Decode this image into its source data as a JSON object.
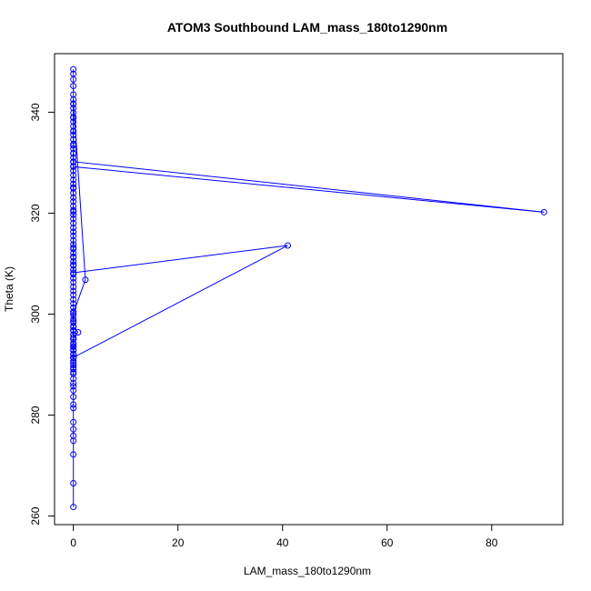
{
  "chart_data": {
    "type": "line",
    "title": "ATOM3 Southbound LAM_mass_180to1290nm",
    "xlabel": "LAM_mass_180to1290nm",
    "ylabel": "Theta (K)",
    "xlim": [
      -3.6,
      93.6
    ],
    "ylim": [
      258.3,
      351.6
    ],
    "xticks": [
      0,
      20,
      40,
      60,
      80
    ],
    "yticks": [
      260,
      280,
      300,
      320,
      340
    ],
    "series_color": "#0000ff",
    "markers": "open-circle",
    "grid": false,
    "series": [
      {
        "x": [
          0,
          0,
          0,
          0,
          0,
          0,
          0,
          0,
          0,
          0,
          0,
          0,
          0,
          0,
          0,
          0,
          0,
          0,
          0,
          0,
          0,
          0,
          0,
          0,
          0,
          0,
          0,
          0,
          0,
          0,
          0,
          0,
          0,
          0,
          0,
          0,
          0,
          0,
          0,
          0,
          0,
          0,
          0,
          0,
          0,
          0,
          0,
          0,
          0,
          0,
          0,
          0,
          0,
          0,
          0,
          0,
          0,
          0,
          0,
          0,
          0,
          0,
          0,
          0,
          0,
          0,
          0,
          0,
          0,
          0,
          0,
          0,
          0,
          0,
          0,
          0,
          0,
          0,
          0,
          0,
          2.3,
          0,
          0,
          0,
          0.9,
          0,
          0,
          0,
          0,
          0,
          0,
          0,
          0,
          0,
          0,
          0,
          0,
          0,
          41,
          0,
          0,
          0,
          0,
          0,
          0,
          0,
          90,
          0,
          0,
          0,
          0,
          0,
          0,
          0,
          0,
          0,
          0,
          0
        ],
        "y": [
          261.8,
          266.5,
          272.2,
          274.9,
          275.9,
          277.2,
          278.6,
          281.4,
          282.1,
          283.6,
          284.9,
          285.7,
          286.3,
          287.2,
          288.2,
          289.1,
          289.9,
          290.7,
          291.3,
          292.0,
          292.8,
          293.6,
          294.2,
          295.0,
          296.0,
          296.8,
          297.6,
          298.3,
          299.0,
          299.8,
          300.5,
          301.3,
          302.1,
          302.9,
          303.8,
          304.6,
          305.4,
          306.3,
          307.1,
          307.9,
          308.8,
          309.6,
          310.4,
          311.2,
          312.1,
          312.9,
          313.8,
          314.6,
          315.5,
          316.3,
          317.1,
          318.0,
          318.9,
          319.7,
          320.6,
          321.4,
          322.3,
          323.1,
          324.0,
          324.9,
          325.8,
          326.6,
          327.5,
          328.4,
          329.3,
          330.1,
          331.0,
          331.9,
          332.8,
          333.7,
          334.6,
          335.5,
          336.3,
          337.2,
          338.1,
          339.0,
          339.9,
          340.8,
          341.6,
          342.5,
          306.8,
          300.2,
          298.6,
          297.4,
          296.4,
          295.4,
          294.0,
          293.0,
          292.1,
          291.4,
          288.5,
          289.4,
          290.3,
          291.4,
          293.5,
          295.0,
          296.7,
          291.4,
          313.6,
          308.2,
          309.8,
          311.4,
          313.2,
          320.3,
          325.1,
          329.2,
          320.2,
          330.2,
          331.8,
          333.4,
          336.2,
          338.9,
          341.7,
          343.5,
          345.2,
          346.5,
          347.6,
          348.5
        ]
      }
    ]
  }
}
